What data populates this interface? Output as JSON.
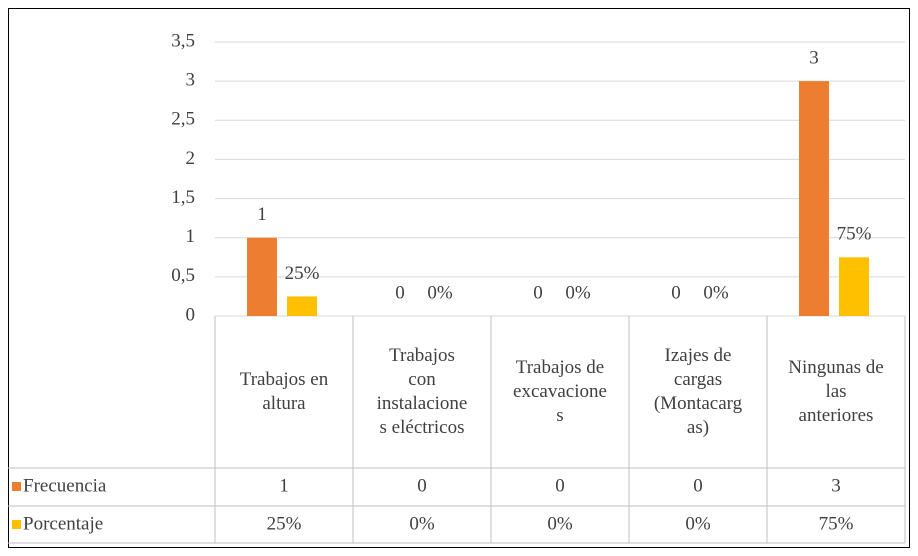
{
  "chart_data": {
    "type": "bar",
    "categories": [
      "Trabajos en altura",
      "Trabajos con instalaciones eléctricos",
      "Trabajos de excavaciones",
      "Izajes de cargas (Montacargas)",
      "Ningunas de las anteriores"
    ],
    "series": [
      {
        "name": "Frecuencia",
        "color": "#ed7d31",
        "values": [
          1,
          0,
          0,
          0,
          3
        ]
      },
      {
        "name": "Porcentaje",
        "color": "#ffc000",
        "values": [
          0.25,
          0,
          0,
          0,
          0.75
        ],
        "value_labels": [
          "25%",
          "0%",
          "0%",
          "0%",
          "75%"
        ]
      }
    ],
    "ylim": [
      0,
      3.5
    ],
    "yticks": [
      0,
      {
        "value": 0.5,
        "label": "0,5"
      },
      1,
      {
        "value": 1.5,
        "label": "1,5"
      },
      2,
      {
        "value": 2.5,
        "label": "2,5"
      },
      3,
      {
        "value": 3.5,
        "label": "3,5"
      }
    ],
    "grid": true
  }
}
